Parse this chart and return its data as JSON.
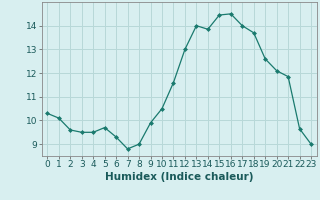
{
  "x": [
    0,
    1,
    2,
    3,
    4,
    5,
    6,
    7,
    8,
    9,
    10,
    11,
    12,
    13,
    14,
    15,
    16,
    17,
    18,
    19,
    20,
    21,
    22,
    23
  ],
  "y": [
    10.3,
    10.1,
    9.6,
    9.5,
    9.5,
    9.7,
    9.3,
    8.8,
    9.0,
    9.9,
    10.5,
    11.6,
    13.0,
    14.0,
    13.85,
    14.45,
    14.5,
    14.0,
    13.7,
    12.6,
    12.1,
    11.85,
    9.65,
    9.0
  ],
  "xlabel": "Humidex (Indice chaleur)",
  "bg_color": "#d8eff0",
  "grid_color": "#b8d8d8",
  "line_color": "#1a7a6e",
  "marker_color": "#1a7a6e",
  "ylim": [
    8.5,
    15.0
  ],
  "xlim": [
    -0.5,
    23.5
  ],
  "yticks": [
    9,
    10,
    11,
    12,
    13,
    14
  ],
  "xticks": [
    0,
    1,
    2,
    3,
    4,
    5,
    6,
    7,
    8,
    9,
    10,
    11,
    12,
    13,
    14,
    15,
    16,
    17,
    18,
    19,
    20,
    21,
    22,
    23
  ],
  "tick_fontsize": 6.5,
  "label_fontsize": 7.5
}
